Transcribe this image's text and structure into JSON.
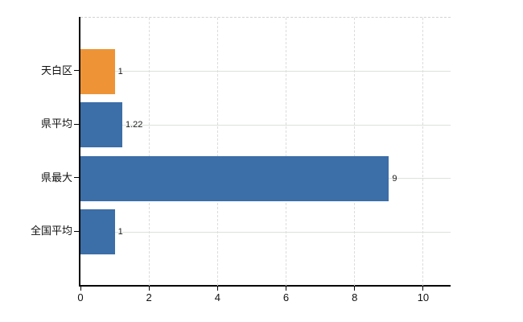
{
  "chart_data": {
    "type": "bar",
    "orientation": "horizontal",
    "title": "",
    "xlabel": "",
    "ylabel": "",
    "categories": [
      "天白区",
      "県平均",
      "県最大",
      "全国平均"
    ],
    "values": [
      1,
      1.22,
      9,
      1
    ],
    "value_labels": [
      "1",
      "1.22",
      "9",
      "1"
    ],
    "bar_colors": [
      "#EE9437",
      "#3C6EA8",
      "#3C6EA8",
      "#3C6EA8"
    ],
    "x_ticks": [
      0,
      2,
      4,
      6,
      8,
      10
    ],
    "x_tick_labels": [
      "0",
      "2",
      "4",
      "6",
      "8",
      "10"
    ],
    "xlim": [
      0,
      10.8
    ],
    "grid": true,
    "legend": "none",
    "colors": {
      "bar_orange": "#EE9437",
      "bar_blue": "#3C6EA8",
      "axis": "#000000",
      "gridline_h": "#dbe2db",
      "gridline_v": "#dcdcdc",
      "plot_top_border": "#d2d2d2",
      "text": "#111111"
    }
  }
}
